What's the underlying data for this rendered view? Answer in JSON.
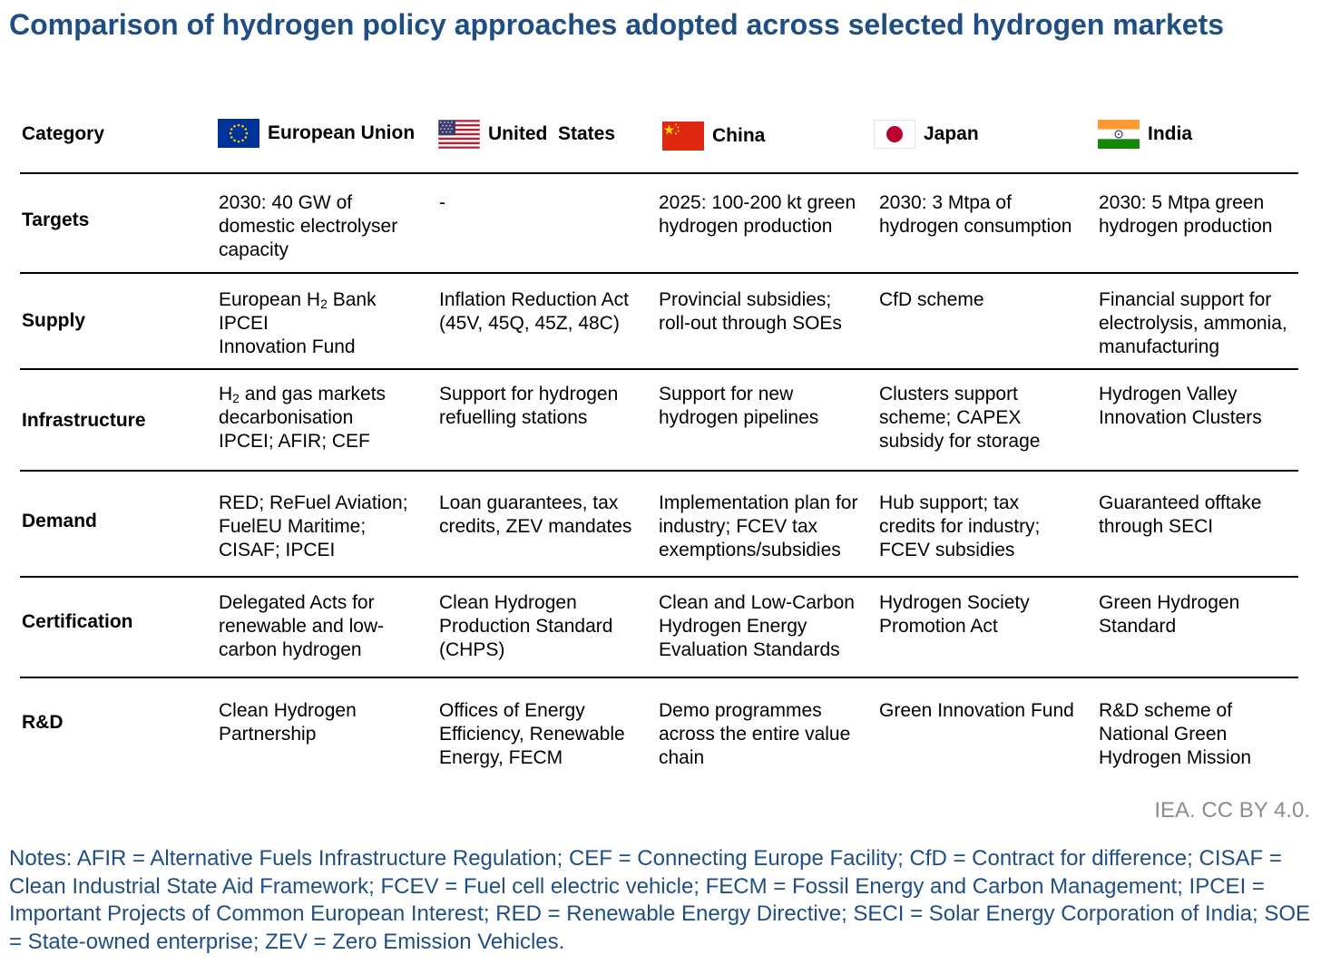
{
  "title": "Comparison of hydrogen policy approaches adopted across selected hydrogen markets",
  "colors": {
    "title": "#1f4e85",
    "notes": "#1f4e85",
    "credit": "#8c8c8c",
    "rules": "#000000"
  },
  "table": {
    "category_header": "Category",
    "columns": [
      {
        "name": "European Union",
        "flag": "eu-flag-icon"
      },
      {
        "name": "United  States",
        "flag": "us-flag-icon"
      },
      {
        "name": "China",
        "flag": "china-flag-icon"
      },
      {
        "name": "Japan",
        "flag": "japan-flag-icon"
      },
      {
        "name": "India",
        "flag": "india-flag-icon"
      }
    ],
    "rows": [
      {
        "category": "Targets",
        "eu": {
          "l1": "2030: 40 GW of",
          "l2": "domestic electrolyser",
          "l3": "capacity"
        },
        "us": {
          "l1": "-"
        },
        "cn": {
          "l1": "2025: 100-200 kt green",
          "l2": "hydrogen production"
        },
        "jp": {
          "l1": "2030: 3 Mtpa of",
          "l2": "hydrogen consumption"
        },
        "in": {
          "l1": "2030: 5 Mtpa green",
          "l2": "hydrogen production"
        }
      },
      {
        "category": "Supply",
        "eu": {
          "l1a": "European H",
          "l1sub": "2",
          "l1b": " Bank",
          "l2": "IPCEI",
          "l3": "Innovation Fund"
        },
        "us": {
          "l1": "Inflation Reduction Act",
          "l2": "(45V, 45Q, 45Z, 48C)"
        },
        "cn": {
          "l1": "Provincial subsidies;",
          "l2": "roll-out through SOEs"
        },
        "jp": {
          "l1": "CfD scheme"
        },
        "in": {
          "l1": "Financial support for",
          "l2": "electrolysis, ammonia,",
          "l3": "manufacturing"
        }
      },
      {
        "category": "Infrastructure",
        "eu": {
          "l1a": "H",
          "l1sub": "2",
          "l1b": " and gas markets",
          "l2": "decarbonisation",
          "l3": "IPCEI; AFIR; CEF"
        },
        "us": {
          "l1": "Support for hydrogen",
          "l2": "refuelling stations"
        },
        "cn": {
          "l1": "Support for new",
          "l2": "hydrogen pipelines"
        },
        "jp": {
          "l1": "Clusters support",
          "l2": "scheme; CAPEX",
          "l3": "subsidy for storage"
        },
        "in": {
          "l1": "Hydrogen Valley",
          "l2": "Innovation Clusters"
        }
      },
      {
        "category": "Demand",
        "eu": {
          "l1": "RED; ReFuel Aviation;",
          "l2": "FuelEU Maritime;",
          "l3": "CISAF; IPCEI"
        },
        "us": {
          "l1": "Loan guarantees, tax",
          "l2": "credits, ZEV mandates"
        },
        "cn": {
          "l1": "Implementation plan for",
          "l2": "industry; FCEV tax",
          "l3": "exemptions/subsidies"
        },
        "jp": {
          "l1": "Hub support; tax",
          "l2": "credits for industry;",
          "l3": "FCEV subsidies"
        },
        "in": {
          "l1": "Guaranteed offtake",
          "l2": "through SECI"
        }
      },
      {
        "category": "Certification",
        "eu": {
          "l1": "Delegated Acts for",
          "l2": "renewable and low-",
          "l3": "carbon hydrogen"
        },
        "us": {
          "l1": "Clean Hydrogen",
          "l2": "Production Standard",
          "l3": "(CHPS)"
        },
        "cn": {
          "l1": "Clean and Low-Carbon",
          "l2": "Hydrogen Energy",
          "l3": "Evaluation Standards"
        },
        "jp": {
          "l1": "Hydrogen Society",
          "l2": "Promotion Act"
        },
        "in": {
          "l1": "Green Hydrogen",
          "l2": "Standard"
        }
      },
      {
        "category": "R&D",
        "eu": {
          "l1": "Clean Hydrogen",
          "l2": "Partnership"
        },
        "us": {
          "l1": "Offices of Energy",
          "l2": "Efficiency, Renewable",
          "l3": "Energy, FECM"
        },
        "cn": {
          "l1": "Demo programmes",
          "l2": "across the entire value",
          "l3": "chain"
        },
        "jp": {
          "l1": "Green Innovation Fund"
        },
        "in": {
          "l1": "R&D scheme of",
          "l2": "National Green",
          "l3": "Hydrogen Mission"
        }
      }
    ]
  },
  "credit": "IEA. CC BY 4.0.",
  "notes": "Notes: AFIR = Alternative Fuels Infrastructure Regulation; CEF = Connecting Europe Facility; CfD = Contract for difference; CISAF = Clean Industrial State Aid Framework; FCEV = Fuel cell electric vehicle; FECM = Fossil Energy and Carbon Management; IPCEI = Important Projects of Common European Interest; RED = Renewable Energy Directive; SECI = Solar Energy Corporation of India; SOE = State-owned enterprise; ZEV = Zero Emission Vehicles."
}
